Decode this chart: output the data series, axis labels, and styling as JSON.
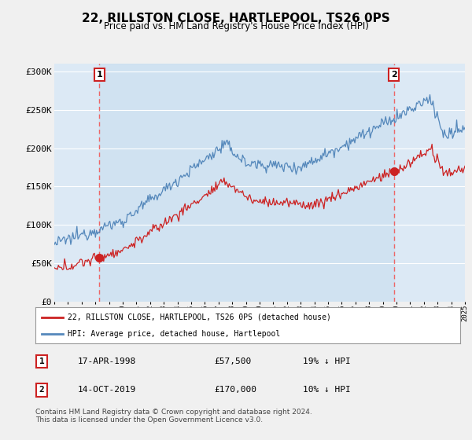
{
  "title": "22, RILLSTON CLOSE, HARTLEPOOL, TS26 0PS",
  "subtitle": "Price paid vs. HM Land Registry's House Price Index (HPI)",
  "background_color": "#f0f0f0",
  "plot_bg_color": "#dce9f5",
  "plot_inner_bg": "#dce9f5",
  "ylim": [
    0,
    310000
  ],
  "yticks": [
    0,
    50000,
    100000,
    150000,
    200000,
    250000,
    300000
  ],
  "ytick_labels": [
    "£0",
    "£50K",
    "£100K",
    "£150K",
    "£200K",
    "£250K",
    "£300K"
  ],
  "sale1_year": 1998.3,
  "sale1_price": 57500,
  "sale1_label": "1",
  "sale2_year": 2019.8,
  "sale2_price": 170000,
  "sale2_label": "2",
  "red_line_color": "#cc2222",
  "blue_line_color": "#5588bb",
  "dashed_line_color": "#ee6666",
  "shade_color": "#cce0f0",
  "legend_label_red": "22, RILLSTON CLOSE, HARTLEPOOL, TS26 0PS (detached house)",
  "legend_label_blue": "HPI: Average price, detached house, Hartlepool",
  "table_row1": [
    "1",
    "17-APR-1998",
    "£57,500",
    "19% ↓ HPI"
  ],
  "table_row2": [
    "2",
    "14-OCT-2019",
    "£170,000",
    "10% ↓ HPI"
  ],
  "footer": "Contains HM Land Registry data © Crown copyright and database right 2024.\nThis data is licensed under the Open Government Licence v3.0.",
  "xmin": 1995,
  "xmax": 2025
}
